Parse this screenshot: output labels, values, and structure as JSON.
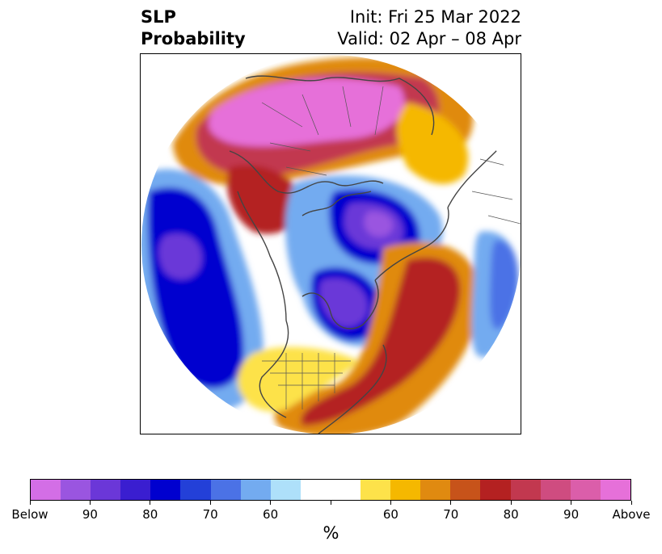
{
  "title": {
    "left_line1": "SLP",
    "left_line2": "Probability",
    "right_line1": "Init: Fri 25 Mar 2022",
    "right_line2": "Valid: 02 Apr – 08 Apr"
  },
  "colorbar": {
    "unit": "%",
    "tick_labels": [
      "Below",
      "90",
      "80",
      "70",
      "60",
      "",
      "60",
      "70",
      "80",
      "90",
      "Above"
    ],
    "colors": [
      "#d36ee6",
      "#9a55e0",
      "#6b37d8",
      "#3a1ed0",
      "#0000cf",
      "#2340d8",
      "#4b72e6",
      "#73abf0",
      "#aee0fa",
      "#ffffff",
      "#ffffff",
      "#fde24a",
      "#f5b800",
      "#e08a10",
      "#c7531a",
      "#b42121",
      "#c2384f",
      "#cf4c80",
      "#db5eaa",
      "#e670d9"
    ]
  },
  "map": {
    "colors": {
      "ocean_blue": "#73abf0",
      "deep_blue": "#0000cf",
      "purple": "#6b37d8",
      "red": "#b42121",
      "magenta": "#db5eaa",
      "pink": "#e670d9",
      "orange": "#e08a10",
      "yellow": "#f5b800",
      "coast": "#444444"
    }
  }
}
